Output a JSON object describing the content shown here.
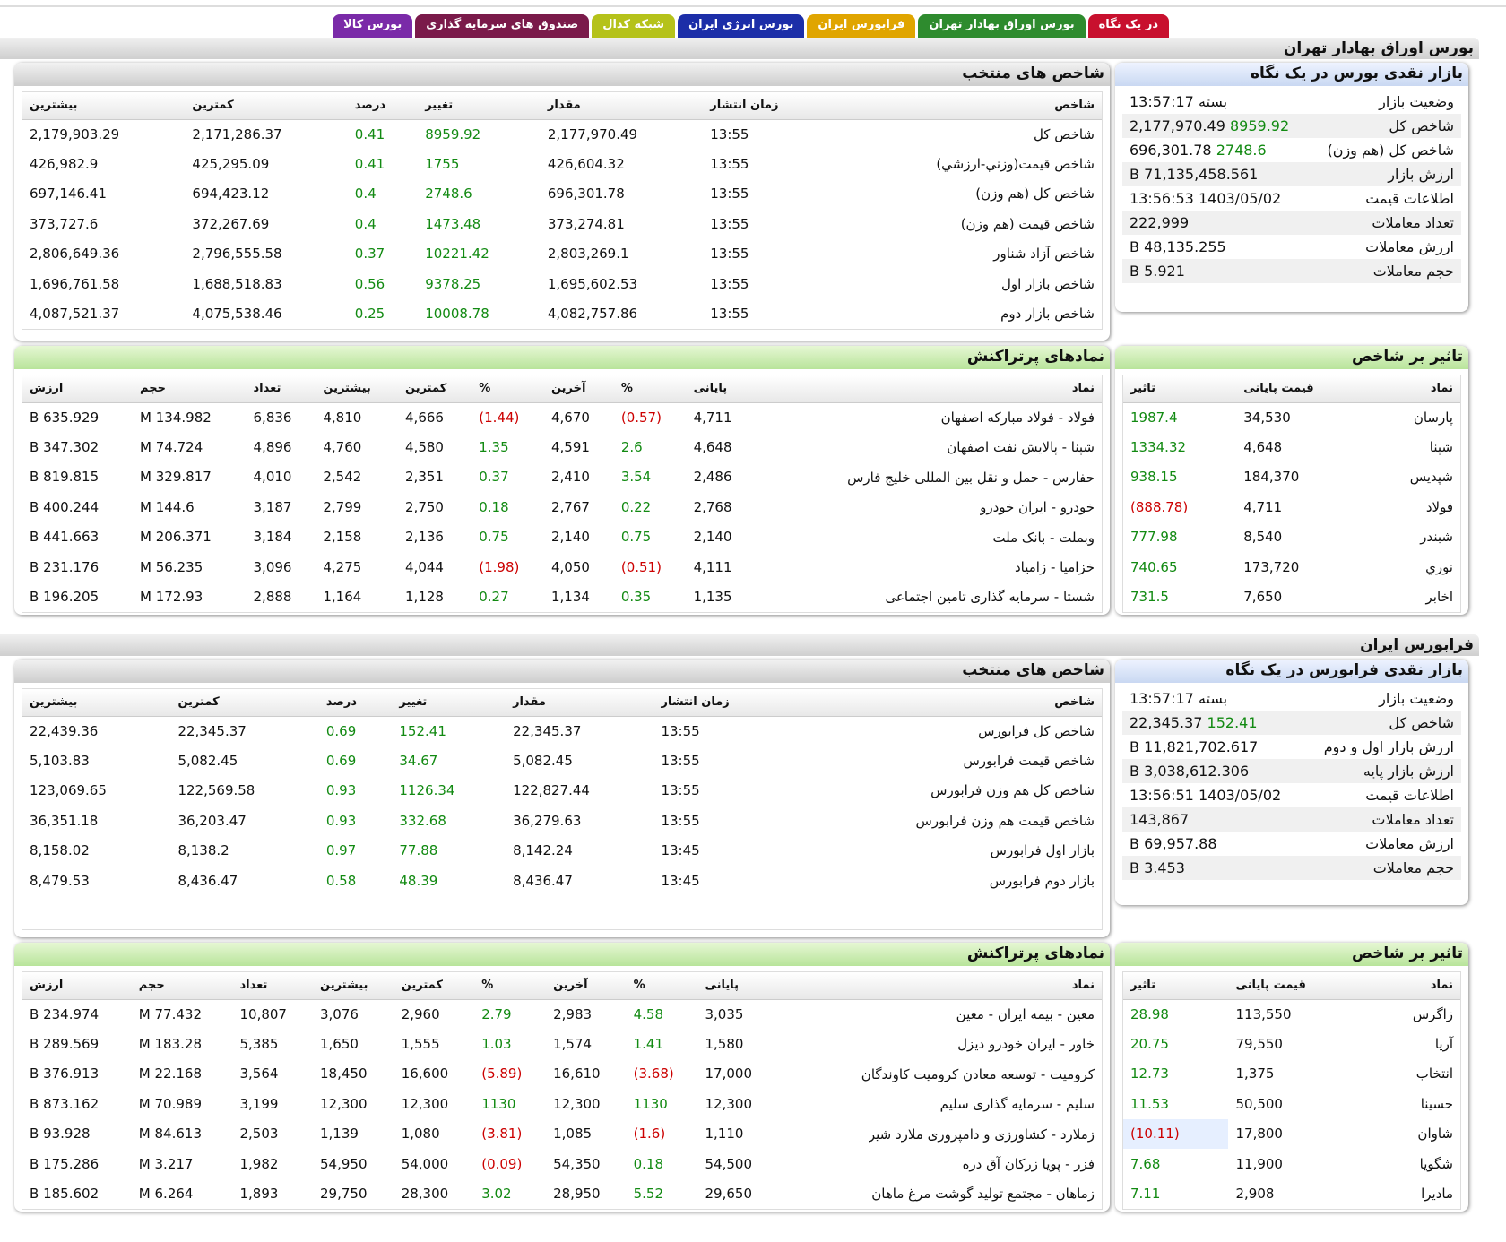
{
  "tabs": [
    {
      "label": "در یک نگاه",
      "color": "#c8102e"
    },
    {
      "label": "بورس اوراق بهادار تهران",
      "color": "#2e8b2e"
    },
    {
      "label": "فرابورس ایران",
      "color": "#e0a500"
    },
    {
      "label": "بورس انرژی ایران",
      "color": "#1c2ea8"
    },
    {
      "label": "شبکه کدال",
      "color": "#b5c21a"
    },
    {
      "label": "صندوق های سرمایه گذاری",
      "color": "#7a1a4a"
    },
    {
      "label": "بورس کالا",
      "color": "#7a2aa8"
    }
  ],
  "sections": {
    "tse": "بورس اوراق بهادار تهران",
    "ifb": "فرابورس ایران"
  },
  "index_headers": [
    "شاخص",
    "زمان انتشار",
    "مقدار",
    "تغییر",
    "درصد",
    "کمترین",
    "بیشترین"
  ],
  "trade_headers": [
    "نماد",
    "پایانی",
    "%",
    "آخرین",
    "%",
    "کمترین",
    "بیشترین",
    "تعداد",
    "حجم",
    "ارزش"
  ],
  "impact_headers": [
    "نماد",
    "قیمت پایانی",
    "تاثیر"
  ],
  "tse": {
    "summary_title": "بازار نقدی بورس در یک نگاه",
    "summary": [
      {
        "k": "وضعیت بازار",
        "v": "بسته 13:57:17"
      },
      {
        "k": "شاخص کل",
        "v": "2,177,970.49",
        "chg": "8959.92"
      },
      {
        "k": "شاخص کل (هم وزن)",
        "v": "696,301.78",
        "chg": "2748.6"
      },
      {
        "k": "ارزش بازار",
        "v": "71,135,458.561 B"
      },
      {
        "k": "اطلاعات قیمت",
        "v": "1403/05/02 13:56:53"
      },
      {
        "k": "تعداد معاملات",
        "v": "222,999"
      },
      {
        "k": "ارزش معاملات",
        "v": "48,135.255 B"
      },
      {
        "k": "حجم معاملات",
        "v": "5.921 B"
      }
    ],
    "indices_title": "شاخص های منتخب",
    "indices": [
      [
        "شاخص کل",
        "13:55",
        "2,177,970.49",
        "8959.92",
        "0.41",
        "2,171,286.37",
        "2,179,903.29"
      ],
      [
        "شاخص قيمت(وزني-ارزشي)",
        "13:55",
        "426,604.32",
        "1755",
        "0.41",
        "425,295.09",
        "426,982.9"
      ],
      [
        "شاخص کل (هم وزن)",
        "13:55",
        "696,301.78",
        "2748.6",
        "0.4",
        "694,423.12",
        "697,146.41"
      ],
      [
        "شاخص قیمت (هم وزن)",
        "13:55",
        "373,274.81",
        "1473.48",
        "0.4",
        "372,267.69",
        "373,727.6"
      ],
      [
        "شاخص آزاد شناور",
        "13:55",
        "2,803,269.1",
        "10221.42",
        "0.37",
        "2,796,555.58",
        "2,806,649.36"
      ],
      [
        "شاخص بازار اول",
        "13:55",
        "1,695,602.53",
        "9378.25",
        "0.56",
        "1,688,518.83",
        "1,696,761.58"
      ],
      [
        "شاخص بازار دوم",
        "13:55",
        "4,082,757.86",
        "10008.78",
        "0.25",
        "4,075,538.46",
        "4,087,521.37"
      ]
    ],
    "impact_title": "تاثیر بر شاخص",
    "impact": [
      [
        "پارسان",
        "34,530",
        "1987.4"
      ],
      [
        "شپنا",
        "4,648",
        "1334.32"
      ],
      [
        "شپدیس",
        "184,370",
        "938.15"
      ],
      [
        "فولاد",
        "4,711",
        "(888.78)"
      ],
      [
        "شبندر",
        "8,540",
        "777.98"
      ],
      [
        "نوري",
        "173,720",
        "740.65"
      ],
      [
        "اخابر",
        "7,650",
        "731.5"
      ]
    ],
    "trades_title": "نمادهای پرتراکنش",
    "trades": [
      [
        "فولاد - فولاد مباركه اصفهان",
        "4,711",
        "(0.57)",
        "4,670",
        "(1.44)",
        "4,666",
        "4,810",
        "6,836",
        "134.982 M",
        "635.929 B"
      ],
      [
        "شپنا - پالايش نفت اصفهان",
        "4,648",
        "2.6",
        "4,591",
        "1.35",
        "4,580",
        "4,760",
        "4,896",
        "74.724 M",
        "347.302 B"
      ],
      [
        "حفارس - حمل و نقل بین المللی خلیج فارس",
        "2,486",
        "3.54",
        "2,410",
        "0.37",
        "2,351",
        "2,542",
        "4,010",
        "329.817 M",
        "819.815 B"
      ],
      [
        "خودرو - ایران خودرو",
        "2,768",
        "0.22",
        "2,767",
        "0.18",
        "2,750",
        "2,799",
        "3,187",
        "144.6 M",
        "400.244 B"
      ],
      [
        "وبملت - بانک ملت",
        "2,140",
        "0.75",
        "2,140",
        "0.75",
        "2,136",
        "2,158",
        "3,184",
        "206.371 M",
        "441.663 B"
      ],
      [
        "خزامیا - زامیاد",
        "4,111",
        "(0.51)",
        "4,050",
        "(1.98)",
        "4,044",
        "4,275",
        "3,096",
        "56.235 M",
        "231.176 B"
      ],
      [
        "شستا - سرمایه گذاری تامین اجتماعی",
        "1,135",
        "0.35",
        "1,134",
        "0.27",
        "1,128",
        "1,164",
        "2,888",
        "172.93 M",
        "196.205 B"
      ]
    ]
  },
  "ifb": {
    "summary_title": "بازار نقدی فرابورس در یک نگاه",
    "summary": [
      {
        "k": "وضعیت بازار",
        "v": "بسته 13:57:17"
      },
      {
        "k": "شاخص کل",
        "v": "22,345.37",
        "chg": "152.41"
      },
      {
        "k": "ارزش بازار اول و دوم",
        "v": "11,821,702.617 B"
      },
      {
        "k": "ارزش بازار پایه",
        "v": "3,038,612.306 B"
      },
      {
        "k": "اطلاعات قیمت",
        "v": "1403/05/02 13:56:51"
      },
      {
        "k": "تعداد معاملات",
        "v": "143,867"
      },
      {
        "k": "ارزش معاملات",
        "v": "69,957.88 B"
      },
      {
        "k": "حجم معاملات",
        "v": "3.453 B"
      }
    ],
    "indices_title": "شاخص های منتخب",
    "indices": [
      [
        "شاخص کل فرابورس",
        "13:55",
        "22,345.37",
        "152.41",
        "0.69",
        "22,345.37",
        "22,439.36"
      ],
      [
        "شاخص قیمت فرابورس",
        "13:55",
        "5,082.45",
        "34.67",
        "0.69",
        "5,082.45",
        "5,103.83"
      ],
      [
        "شاخص کل هم وزن فرابورس",
        "13:55",
        "122,827.44",
        "1126.34",
        "0.93",
        "122,569.58",
        "123,069.65"
      ],
      [
        "شاخص قیمت هم وزن فرابورس",
        "13:55",
        "36,279.63",
        "332.68",
        "0.93",
        "36,203.47",
        "36,351.18"
      ],
      [
        "بازار اول فرابورس",
        "13:45",
        "8,142.24",
        "77.88",
        "0.97",
        "8,138.2",
        "8,158.02"
      ],
      [
        "بازار دوم فرابورس",
        "13:45",
        "8,436.47",
        "48.39",
        "0.58",
        "8,436.47",
        "8,479.53"
      ]
    ],
    "impact_title": "تاثیر بر شاخص",
    "impact": [
      [
        "زاگرس",
        "113,550",
        "28.98"
      ],
      [
        "آریا",
        "79,550",
        "20.75"
      ],
      [
        "انتخاب",
        "1,375",
        "12.73"
      ],
      [
        "حسینا",
        "50,500",
        "11.53"
      ],
      [
        "شاوان",
        "17,800",
        "(10.11)"
      ],
      [
        "شگویا",
        "11,900",
        "7.68"
      ],
      [
        "مادیرا",
        "2,908",
        "7.11"
      ]
    ],
    "trades_title": "نمادهای پرتراکنش",
    "trades": [
      [
        "معین - بیمه ایران - معین",
        "3,035",
        "4.58",
        "2,983",
        "2.79",
        "2,960",
        "3,076",
        "10,807",
        "77.432 M",
        "234.974 B"
      ],
      [
        "خاور - ایران خودرو دیزل",
        "1,580",
        "1.41",
        "1,574",
        "1.03",
        "1,555",
        "1,650",
        "5,385",
        "183.28 M",
        "289.569 B"
      ],
      [
        "کرومیت - توسعه معادن کرومیت کاوندگان",
        "17,000",
        "(3.68)",
        "16,610",
        "(5.89)",
        "16,600",
        "18,450",
        "3,564",
        "22.168 M",
        "376.913 B"
      ],
      [
        "سلیم - سرمایه گذاری سلیم",
        "12,300",
        "1130",
        "12,300",
        "1130",
        "12,300",
        "12,300",
        "3,199",
        "70.989 M",
        "873.162 B"
      ],
      [
        "زملارد - کشاورزی و دامپروری ملارد شیر",
        "1,110",
        "(1.6)",
        "1,085",
        "(3.81)",
        "1,080",
        "1,139",
        "2,503",
        "84.613 M",
        "93.928 B"
      ],
      [
        "فزر - پویا زرکان آق دره",
        "54,500",
        "0.18",
        "54,350",
        "(0.09)",
        "54,000",
        "54,950",
        "1,982",
        "3.217 M",
        "175.286 B"
      ],
      [
        "زماهان - مجتمع تولید گوشت مرغ ماهان",
        "29,650",
        "5.52",
        "28,950",
        "3.02",
        "28,300",
        "29,750",
        "1,893",
        "6.264 M",
        "185.602 B"
      ]
    ]
  }
}
